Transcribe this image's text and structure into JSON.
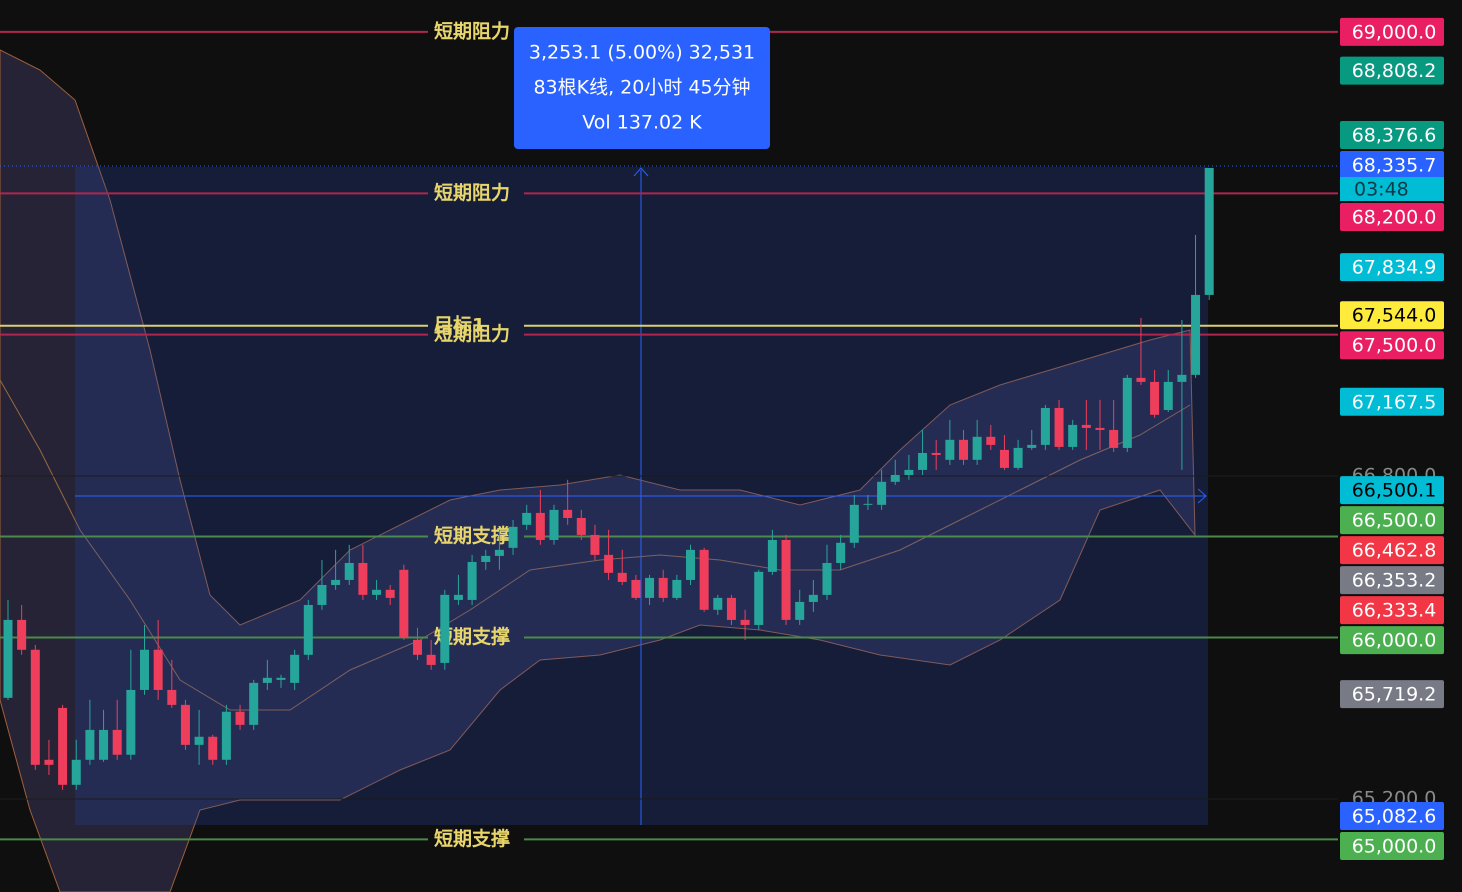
{
  "chart_data": {
    "type": "candlestick",
    "ylim": [
      64739,
      69158
    ],
    "yticks": [
      {
        "value": 66800,
        "label": "66,800.0"
      },
      {
        "value": 65200,
        "label": "65,200.0"
      }
    ],
    "up_color": "#26a69a",
    "down_color": "#ef3e5c",
    "open": [
      65701,
      66087,
      65939,
      65394,
      65651,
      65270,
      65394,
      65394,
      65542,
      65419,
      65740,
      65939,
      65740,
      65666,
      65468,
      65508,
      65394,
      65632,
      65567,
      65775,
      65790,
      65775,
      65914,
      66161,
      66260,
      66285,
      66369,
      66211,
      66236,
      66335,
      65988,
      65914,
      65874,
      66186,
      66186,
      66374,
      66404,
      66444,
      66558,
      66617,
      66483,
      66632,
      66592,
      66508,
      66409,
      66320,
      66285,
      66196,
      66295,
      66196,
      66285,
      66434,
      66137,
      66196,
      66087,
      66062,
      66325,
      66483,
      66087,
      66176,
      66211,
      66369,
      66469,
      66657,
      66657,
      66771,
      66805,
      66830,
      66914,
      66880,
      66979,
      66880,
      66994,
      66929,
      66840,
      66939,
      66954,
      67137,
      66944,
      67053,
      67038,
      67028,
      66939,
      67286,
      67266,
      67127,
      67266,
      67301,
      67697
    ],
    "high": [
      66186,
      66161,
      65963,
      65493,
      65666,
      65493,
      65691,
      65641,
      65691,
      65939,
      66062,
      66087,
      65889,
      65691,
      65641,
      65518,
      65666,
      65666,
      65790,
      65889,
      65815,
      65939,
      66186,
      66384,
      66434,
      66459,
      66459,
      66285,
      66260,
      66360,
      66048,
      65988,
      66236,
      66310,
      66409,
      66434,
      66533,
      66582,
      66657,
      66731,
      66657,
      66781,
      66632,
      66558,
      66533,
      66434,
      66310,
      66310,
      66335,
      66310,
      66459,
      66444,
      66211,
      66211,
      66137,
      66335,
      66533,
      66508,
      66236,
      66285,
      66459,
      66508,
      66706,
      66706,
      66830,
      66880,
      66904,
      67028,
      66979,
      67078,
      67028,
      67078,
      67053,
      67003,
      66979,
      67028,
      67152,
      67177,
      67078,
      67177,
      67177,
      67177,
      67301,
      67583,
      67325,
      67325,
      67573,
      67994,
      68326
    ],
    "low": [
      65691,
      65914,
      65344,
      65319,
      65245,
      65245,
      65369,
      65384,
      65394,
      65394,
      65716,
      65691,
      65651,
      65443,
      65369,
      65369,
      65369,
      65542,
      65542,
      65740,
      65750,
      65740,
      65889,
      66137,
      66236,
      66260,
      66186,
      66186,
      66161,
      65988,
      65889,
      65840,
      65840,
      66161,
      66161,
      66335,
      66335,
      66409,
      66533,
      66459,
      66459,
      66558,
      66483,
      66384,
      66285,
      66260,
      66186,
      66161,
      66176,
      66186,
      66260,
      66127,
      66112,
      66062,
      65988,
      66038,
      66310,
      66062,
      66062,
      66127,
      66186,
      66335,
      66444,
      66632,
      66632,
      66756,
      66781,
      66805,
      66830,
      66855,
      66855,
      66855,
      66929,
      66830,
      66830,
      66929,
      66929,
      66929,
      66929,
      66929,
      66929,
      66919,
      66919,
      67251,
      67088,
      67117,
      66830,
      67286,
      67672
    ],
    "close": [
      66087,
      65939,
      65369,
      65369,
      65270,
      65394,
      65542,
      65542,
      65419,
      65740,
      65939,
      65740,
      65666,
      65468,
      65508,
      65394,
      65632,
      65567,
      65775,
      65800,
      65800,
      65914,
      66161,
      66260,
      66285,
      66369,
      66211,
      66236,
      66196,
      65998,
      65914,
      65864,
      66211,
      66211,
      66374,
      66404,
      66434,
      66548,
      66617,
      66483,
      66632,
      66592,
      66508,
      66409,
      66320,
      66275,
      66196,
      66295,
      66196,
      66285,
      66434,
      66137,
      66196,
      66087,
      66062,
      66325,
      66483,
      66087,
      66176,
      66211,
      66369,
      66469,
      66657,
      66662,
      66771,
      66805,
      66830,
      66914,
      66904,
      66979,
      66880,
      66994,
      66954,
      66840,
      66939,
      66954,
      67137,
      66944,
      67053,
      67038,
      67028,
      66939,
      67286,
      67266,
      67103,
      67266,
      67301,
      67697,
      68326
    ],
    "levels": [
      {
        "value": 69000,
        "label": "短期阻力",
        "color": "#b0264f"
      },
      {
        "value": 68200,
        "label": "短期阻力",
        "color": "#b0264f"
      },
      {
        "value": 67544,
        "label": "目标1",
        "color": "#d9cf74"
      },
      {
        "value": 67500,
        "label": "短期阻力",
        "color": "#b0264f"
      },
      {
        "value": 66500,
        "label": "短期支撑",
        "color": "#4a8a4a"
      },
      {
        "value": 66000,
        "label": "短期支撑",
        "color": "#4a8a4a"
      },
      {
        "value": 65000,
        "label": "短期支撑",
        "color": "#4a8a4a"
      }
    ],
    "level_label_color": "#e8d66c",
    "price_tags": [
      {
        "value": 69000.0,
        "label": "69,000.0",
        "color": "#e91e63"
      },
      {
        "value": 68808.2,
        "label": "68,808.2",
        "color": "#089981"
      },
      {
        "value": 68376.6,
        "label": "68,376.6",
        "color": "#089981"
      },
      {
        "value": 68335.7,
        "label": "68,335.7",
        "color": "#2962ff",
        "sublabel": "03:48",
        "sub_color": "#00bcd4"
      },
      {
        "value": 68200.0,
        "label": "68,200.0",
        "color": "#e91e63"
      },
      {
        "value": 67834.9,
        "label": "67,834.9",
        "color": "#00bcd4"
      },
      {
        "value": 67544.0,
        "label": "67,544.0",
        "color": "#ffeb3b",
        "text_color": "#000000"
      },
      {
        "value": 67500.0,
        "label": "67,500.0",
        "color": "#e91e63"
      },
      {
        "value": 67167.5,
        "label": "67,167.5",
        "color": "#00bcd4"
      },
      {
        "value": 66500.1,
        "label": "66,500.1",
        "color": "#00bcd4",
        "text_color": "#000000"
      },
      {
        "value": 66500.0,
        "label": "66,500.0",
        "color": "#4caf50"
      },
      {
        "value": 66462.8,
        "label": "66,462.8",
        "color": "#f23645"
      },
      {
        "value": 66353.2,
        "label": "66,353.2",
        "color": "#787b86"
      },
      {
        "value": 66333.4,
        "label": "66,333.4",
        "color": "#f23645"
      },
      {
        "value": 66000.0,
        "label": "66,000.0",
        "color": "#4caf50"
      },
      {
        "value": 65719.2,
        "label": "65,719.2",
        "color": "#787b86"
      },
      {
        "value": 65082.6,
        "label": "65,082.6",
        "color": "#2962ff"
      },
      {
        "value": 65000.0,
        "label": "65,000.0",
        "color": "#4caf50"
      }
    ],
    "tooltip": {
      "lines": [
        "3,253.1 (5.00%) 32,531",
        "83根K线, 20小时 45分钟",
        "Vol 137.02 K"
      ],
      "color": "#2962ff"
    }
  }
}
